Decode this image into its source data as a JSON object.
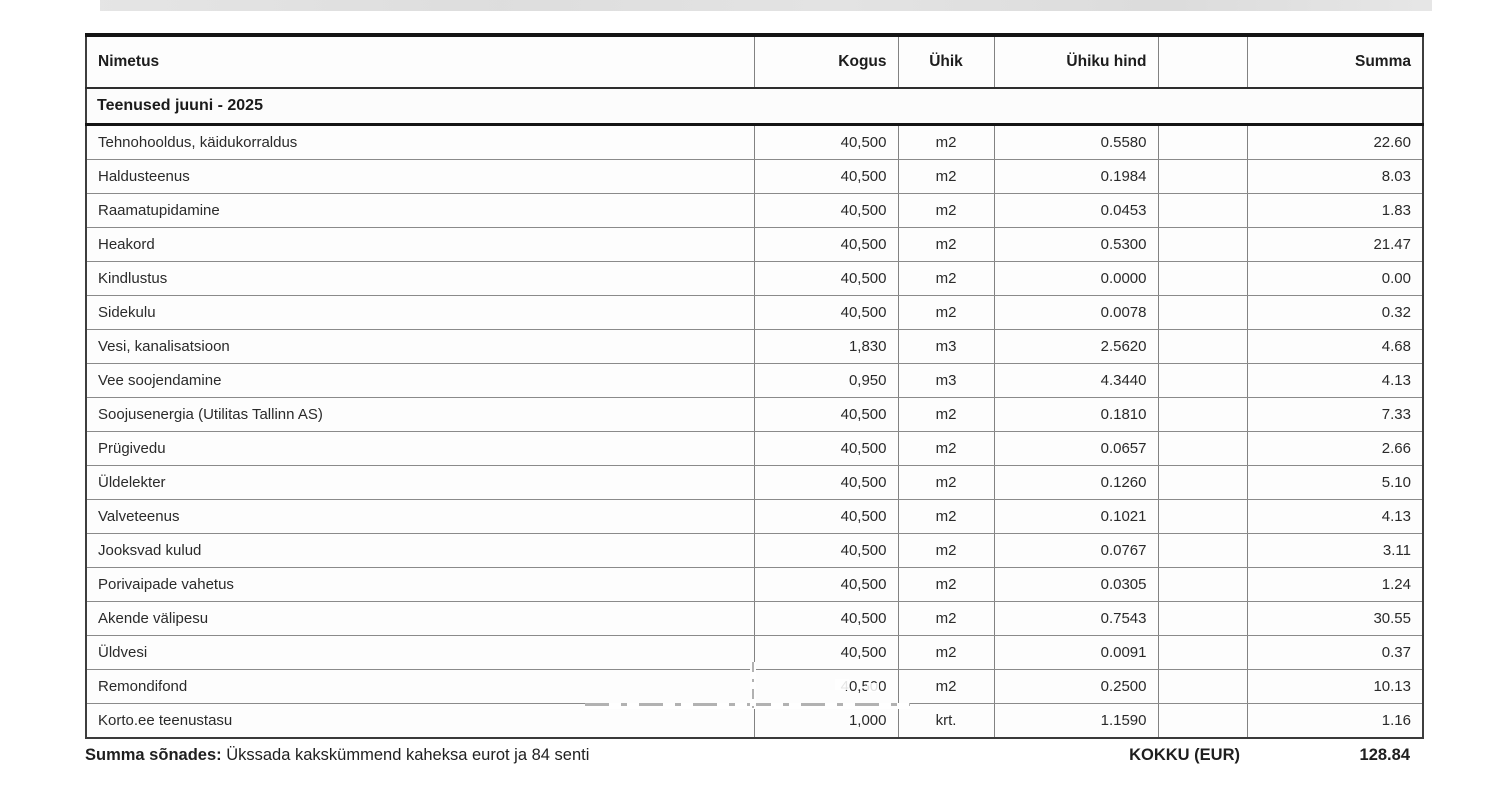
{
  "table": {
    "columns": [
      {
        "key": "nimetus",
        "label": "Nimetus",
        "align": "left"
      },
      {
        "key": "kogus",
        "label": "Kogus",
        "align": "right"
      },
      {
        "key": "uhik",
        "label": "Ühik",
        "align": "center"
      },
      {
        "key": "uhiku_hind",
        "label": "Ühiku hind",
        "align": "right"
      },
      {
        "key": "blank",
        "label": "",
        "align": "right"
      },
      {
        "key": "summa",
        "label": "Summa",
        "align": "right"
      }
    ],
    "section_header": "Teenused juuni - 2025",
    "rows": [
      {
        "nimetus": "Tehnohooldus, käidukorraldus",
        "kogus": "40,500",
        "uhik": "m2",
        "uhiku_hind": "0.5580",
        "blank": "",
        "summa": "22.60"
      },
      {
        "nimetus": "Haldusteenus",
        "kogus": "40,500",
        "uhik": "m2",
        "uhiku_hind": "0.1984",
        "blank": "",
        "summa": "8.03"
      },
      {
        "nimetus": "Raamatupidamine",
        "kogus": "40,500",
        "uhik": "m2",
        "uhiku_hind": "0.0453",
        "blank": "",
        "summa": "1.83"
      },
      {
        "nimetus": "Heakord",
        "kogus": "40,500",
        "uhik": "m2",
        "uhiku_hind": "0.5300",
        "blank": "",
        "summa": "21.47"
      },
      {
        "nimetus": "Kindlustus",
        "kogus": "40,500",
        "uhik": "m2",
        "uhiku_hind": "0.0000",
        "blank": "",
        "summa": "0.00"
      },
      {
        "nimetus": "Sidekulu",
        "kogus": "40,500",
        "uhik": "m2",
        "uhiku_hind": "0.0078",
        "blank": "",
        "summa": "0.32"
      },
      {
        "nimetus": "Vesi, kanalisatsioon",
        "kogus": "1,830",
        "uhik": "m3",
        "uhiku_hind": "2.5620",
        "blank": "",
        "summa": "4.68"
      },
      {
        "nimetus": "Vee soojendamine",
        "kogus": "0,950",
        "uhik": "m3",
        "uhiku_hind": "4.3440",
        "blank": "",
        "summa": "4.13"
      },
      {
        "nimetus": "Soojusenergia (Utilitas Tallinn AS)",
        "kogus": "40,500",
        "uhik": "m2",
        "uhiku_hind": "0.1810",
        "blank": "",
        "summa": "7.33"
      },
      {
        "nimetus": "Prügivedu",
        "kogus": "40,500",
        "uhik": "m2",
        "uhiku_hind": "0.0657",
        "blank": "",
        "summa": "2.66"
      },
      {
        "nimetus": "Üldelekter",
        "kogus": "40,500",
        "uhik": "m2",
        "uhiku_hind": "0.1260",
        "blank": "",
        "summa": "5.10"
      },
      {
        "nimetus": "Valveteenus",
        "kogus": "40,500",
        "uhik": "m2",
        "uhiku_hind": "0.1021",
        "blank": "",
        "summa": "4.13"
      },
      {
        "nimetus": "Jooksvad kulud",
        "kogus": "40,500",
        "uhik": "m2",
        "uhiku_hind": "0.0767",
        "blank": "",
        "summa": "3.11"
      },
      {
        "nimetus": "Porivaipade vahetus",
        "kogus": "40,500",
        "uhik": "m2",
        "uhiku_hind": "0.0305",
        "blank": "",
        "summa": "1.24"
      },
      {
        "nimetus": "Akende välipesu",
        "kogus": "40,500",
        "uhik": "m2",
        "uhiku_hind": "0.7543",
        "blank": "",
        "summa": "30.55"
      },
      {
        "nimetus": "Üldvesi",
        "kogus": "40,500",
        "uhik": "m2",
        "uhiku_hind": "0.0091",
        "blank": "",
        "summa": "0.37"
      },
      {
        "nimetus": "Remondifond",
        "kogus": "40,500",
        "uhik": "m2",
        "uhiku_hind": "0.2500",
        "blank": "",
        "summa": "10.13"
      },
      {
        "nimetus": "Korto.ee teenustasu",
        "kogus": "1,000",
        "uhik": "krt.",
        "uhiku_hind": "1.1590",
        "blank": "",
        "summa": "1.16"
      }
    ]
  },
  "footer": {
    "amount_in_words_label": "Summa sõnades:",
    "amount_in_words": "Ükssada kakskümmend kaheksa eurot ja 84 senti",
    "total_label": "KOKKU (EUR)",
    "total_value": "128.84"
  },
  "colors": {
    "text": "#242424",
    "border_thick": "#141414",
    "border_thin": "#8a8a8a",
    "scan_artifact": "#b2b2b2",
    "background": "#ffffff"
  }
}
